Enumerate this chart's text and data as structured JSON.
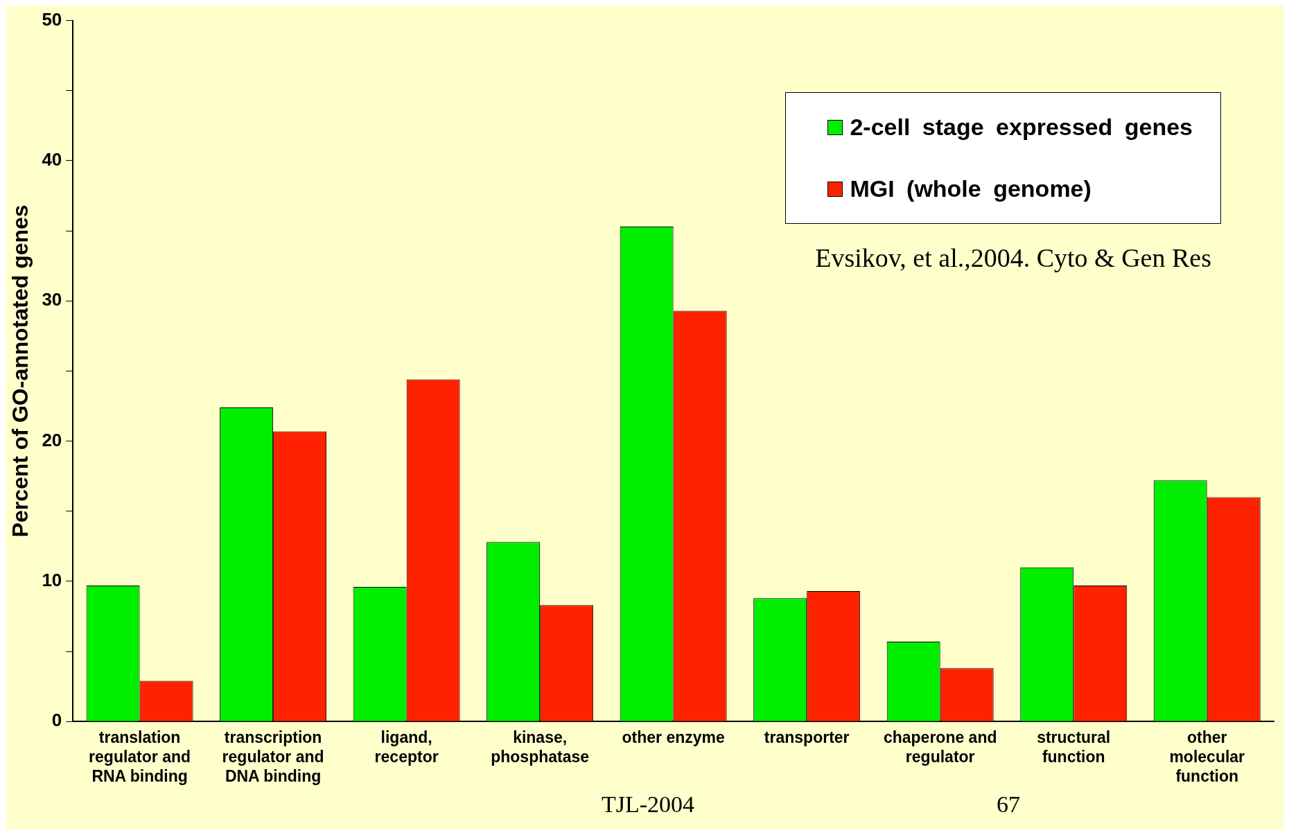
{
  "chart_data": {
    "type": "bar",
    "ylabel": "Percent of GO-annotated genes",
    "categories": [
      "translation regulator and RNA binding",
      "transcription regulator and DNA binding",
      "ligand, receptor",
      "kinase, phosphatase",
      "other enzyme",
      "transporter",
      "chaperone and regulator",
      "structural function",
      "other molecular function"
    ],
    "series": [
      {
        "name": "2-cell stage expressed genes",
        "color": "#00ee00",
        "values": [
          9.7,
          22.4,
          9.6,
          12.8,
          35.3,
          8.8,
          5.7,
          11.0,
          17.2
        ]
      },
      {
        "name": "MGI (whole genome)",
        "color": "#ff2200",
        "values": [
          2.9,
          20.7,
          24.4,
          8.3,
          29.3,
          9.3,
          3.8,
          9.7,
          16.0
        ]
      }
    ],
    "ylim": [
      0,
      50
    ],
    "yticks": [
      0,
      {
        "value": 5,
        "label": null
      },
      10,
      {
        "value": 15,
        "label": null
      },
      20,
      {
        "value": 25,
        "label": null
      },
      30,
      {
        "value": 35,
        "label": null
      },
      40,
      {
        "value": 45,
        "label": null
      },
      50
    ],
    "grid": false,
    "legend": "top right",
    "annotations": [
      "Evsikov, et al.,2004. Cyto & Gen Res",
      "TJL-2004",
      "67"
    ]
  }
}
